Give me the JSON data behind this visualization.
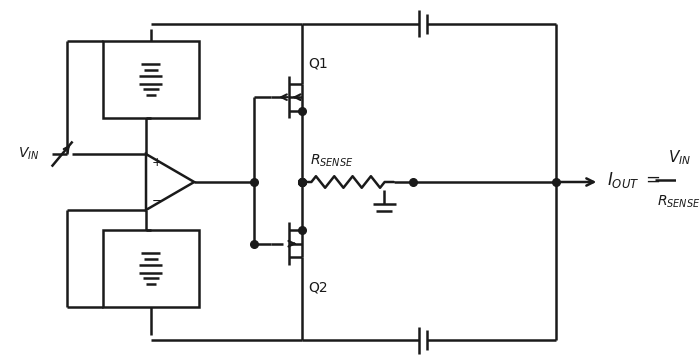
{
  "bg_color": "#ffffff",
  "line_color": "#1a1a1a",
  "line_width": 1.8,
  "dot_size": 5.5,
  "fig_width": 7.0,
  "fig_height": 3.64
}
